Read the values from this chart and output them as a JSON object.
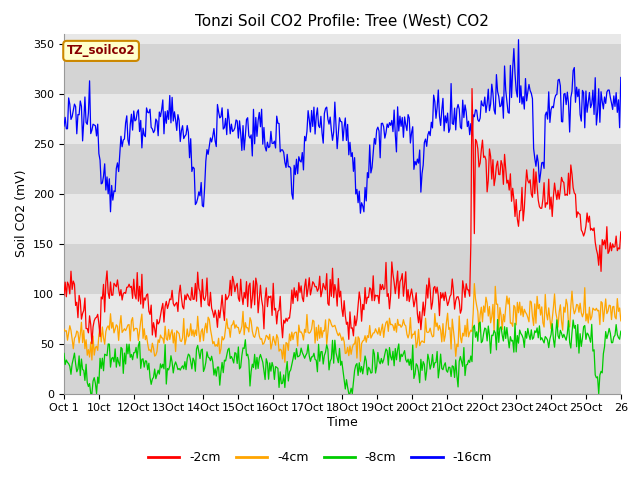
{
  "title": "Tonzi Soil CO2 Profile: Tree (West) CO2",
  "ylabel": "Soil CO2 (mV)",
  "xlabel": "Time",
  "legend_label": "TZ_soilco2",
  "series_labels": [
    "-2cm",
    "-4cm",
    "-8cm",
    "-16cm"
  ],
  "series_colors": [
    "#ff0000",
    "#ffa500",
    "#00cc00",
    "#0000ff"
  ],
  "x_tick_labels": [
    "Oct 1",
    "10ct",
    "12Oct",
    "13Oct",
    "14Oct",
    "15Oct",
    "16Oct",
    "17Oct",
    "18Oct",
    "19Oct",
    "20Oct",
    "21Oct",
    "22Oct",
    "23Oct",
    "24Oct",
    "25Oct",
    "26"
  ],
  "ylim": [
    0,
    360
  ],
  "background_color": "#ffffff",
  "plot_bg_color": "#e8e8e8",
  "band_light": "#e8e8e8",
  "band_dark": "#d4d4d4",
  "n_points": 480,
  "title_fontsize": 11,
  "axis_label_fontsize": 9,
  "tick_fontsize": 8,
  "legend_fontsize": 9,
  "box_facecolor": "#ffffcc",
  "box_edgecolor": "#cc8800",
  "box_textcolor": "#880000"
}
